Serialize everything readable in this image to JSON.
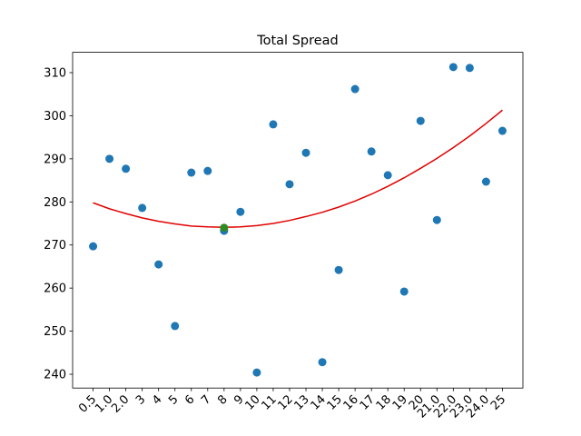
{
  "chart_data": {
    "type": "scatter",
    "title": "Total Spread",
    "categories": [
      "0.5",
      "1.0",
      "2.0",
      "3",
      "4",
      "5",
      "6",
      "7",
      "8",
      "9",
      "10",
      "11",
      "12",
      "13",
      "14",
      "15",
      "16",
      "17",
      "18",
      "19",
      "20",
      "21.0",
      "22.0",
      "23.0",
      "24.0",
      "25"
    ],
    "series": [
      {
        "type": "scatter",
        "color": "#1f77b4",
        "values": [
          269.7,
          290.0,
          287.7,
          278.6,
          265.5,
          251.2,
          286.8,
          287.2,
          273.3,
          277.7,
          240.4,
          298.0,
          284.1,
          291.4,
          242.8,
          264.2,
          306.2,
          291.7,
          286.2,
          259.2,
          298.8,
          275.8,
          311.3,
          311.1,
          284.7,
          296.5
        ]
      },
      {
        "type": "line",
        "color": "#e00000",
        "values": [
          279.8,
          278.4,
          277.3,
          276.3,
          275.5,
          274.9,
          274.4,
          274.2,
          274.1,
          274.2,
          274.5,
          275.0,
          275.7,
          276.6,
          277.6,
          278.8,
          280.2,
          281.8,
          283.6,
          285.6,
          287.8,
          290.1,
          292.6,
          295.3,
          298.2,
          301.3
        ]
      },
      {
        "type": "scatter",
        "color": "#2e8b22",
        "values": [
          null,
          null,
          null,
          null,
          null,
          null,
          null,
          null,
          274.0,
          null,
          null,
          null,
          null,
          null,
          null,
          null,
          null,
          null,
          null,
          null,
          null,
          null,
          null,
          null,
          null,
          null
        ]
      }
    ],
    "xlim": [
      -1.25,
      26.25
    ],
    "ylim": [
      236.8,
      314.72
    ],
    "yticks": [
      240,
      250,
      260,
      270,
      280,
      290,
      300,
      310
    ]
  }
}
